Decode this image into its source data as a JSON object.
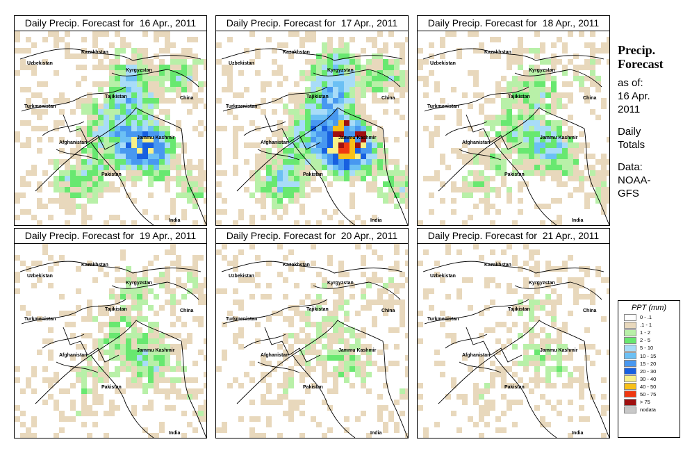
{
  "panels": [
    {
      "title": "Daily Precip. Forecast for  16 Apr., 2011",
      "intensity": 1.0
    },
    {
      "title": "Daily Precip. Forecast for  17 Apr., 2011",
      "intensity": 1.2
    },
    {
      "title": "Daily Precip. Forecast for  18 Apr., 2011",
      "intensity": 0.6
    },
    {
      "title": "Daily Precip. Forecast for  19 Apr., 2011",
      "intensity": 0.45
    },
    {
      "title": "Daily Precip. Forecast for  20 Apr., 2011",
      "intensity": 0.3
    },
    {
      "title": "Daily Precip. Forecast for  21 Apr., 2011",
      "intensity": 0.25
    }
  ],
  "map_labels": {
    "uzbekistan": "Uzbekistan",
    "kazakhstan": "Kazakhstan",
    "kyrgyzstan": "Kyrgyzstan",
    "tajikistan": "Tajikistan",
    "turkmenistan": "Turkmenistan",
    "china": "China",
    "afghanistan": "Afghanistan",
    "jammu_kashmir": "Jammu Kashmir",
    "pakistan": "Pakistan",
    "india": "India"
  },
  "sidebar": {
    "heading_line1": "Precip.",
    "heading_line2": "Forecast",
    "asof_line1": "as of:",
    "asof_line2": "16 Apr.",
    "asof_line3": "2011",
    "totals_line1": "Daily",
    "totals_line2": "Totals",
    "data_line1": "Data:",
    "data_line2": "NOAA-",
    "data_line3": "GFS"
  },
  "legend": {
    "title": "PPT (mm)",
    "items": [
      {
        "label": "0 - .1",
        "color": "#ffffff"
      },
      {
        "label": ".1 - 1",
        "color": "#e8d8bc"
      },
      {
        "label": "1 - 2",
        "color": "#b8f0a8"
      },
      {
        "label": "2 - 5",
        "color": "#68e870"
      },
      {
        "label": "5 - 10",
        "color": "#a8dcf8"
      },
      {
        "label": "10 - 15",
        "color": "#6cc0f4"
      },
      {
        "label": "15 - 20",
        "color": "#4898f0"
      },
      {
        "label": "20 - 30",
        "color": "#1860e0"
      },
      {
        "label": "30 - 40",
        "color": "#f8f088"
      },
      {
        "label": "40 - 50",
        "color": "#f8c018"
      },
      {
        "label": "50 - 75",
        "color": "#f03810"
      },
      {
        "label": "> 75",
        "color": "#a01010"
      },
      {
        "label": "nodata",
        "color": "#c8c8c8"
      }
    ]
  }
}
